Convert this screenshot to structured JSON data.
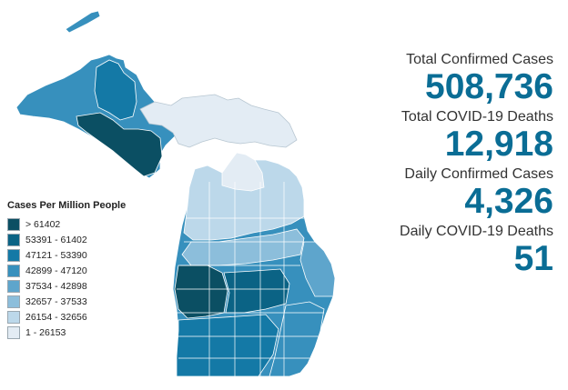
{
  "legend": {
    "title": "Cases Per Million People",
    "items": [
      {
        "label": "> 61402",
        "color": "#0b4f63"
      },
      {
        "label": "53391 - 61402",
        "color": "#0b6385"
      },
      {
        "label": "47121 - 53390",
        "color": "#1479a6"
      },
      {
        "label": "42899 - 47120",
        "color": "#3790bd"
      },
      {
        "label": "37534 - 42898",
        "color": "#5ea5cc"
      },
      {
        "label": "32657 - 37533",
        "color": "#8cbedb"
      },
      {
        "label": "26154 - 32656",
        "color": "#bcd8ea"
      },
      {
        "label": "1 - 26153",
        "color": "#e3ecf4"
      }
    ]
  },
  "stats": [
    {
      "label": "Total Confirmed Cases",
      "value": "508,736"
    },
    {
      "label": "Total COVID-19 Deaths",
      "value": "12,918"
    },
    {
      "label": "Daily Confirmed Cases",
      "value": "4,326"
    },
    {
      "label": "Daily COVID-19 Deaths",
      "value": "51"
    }
  ]
}
